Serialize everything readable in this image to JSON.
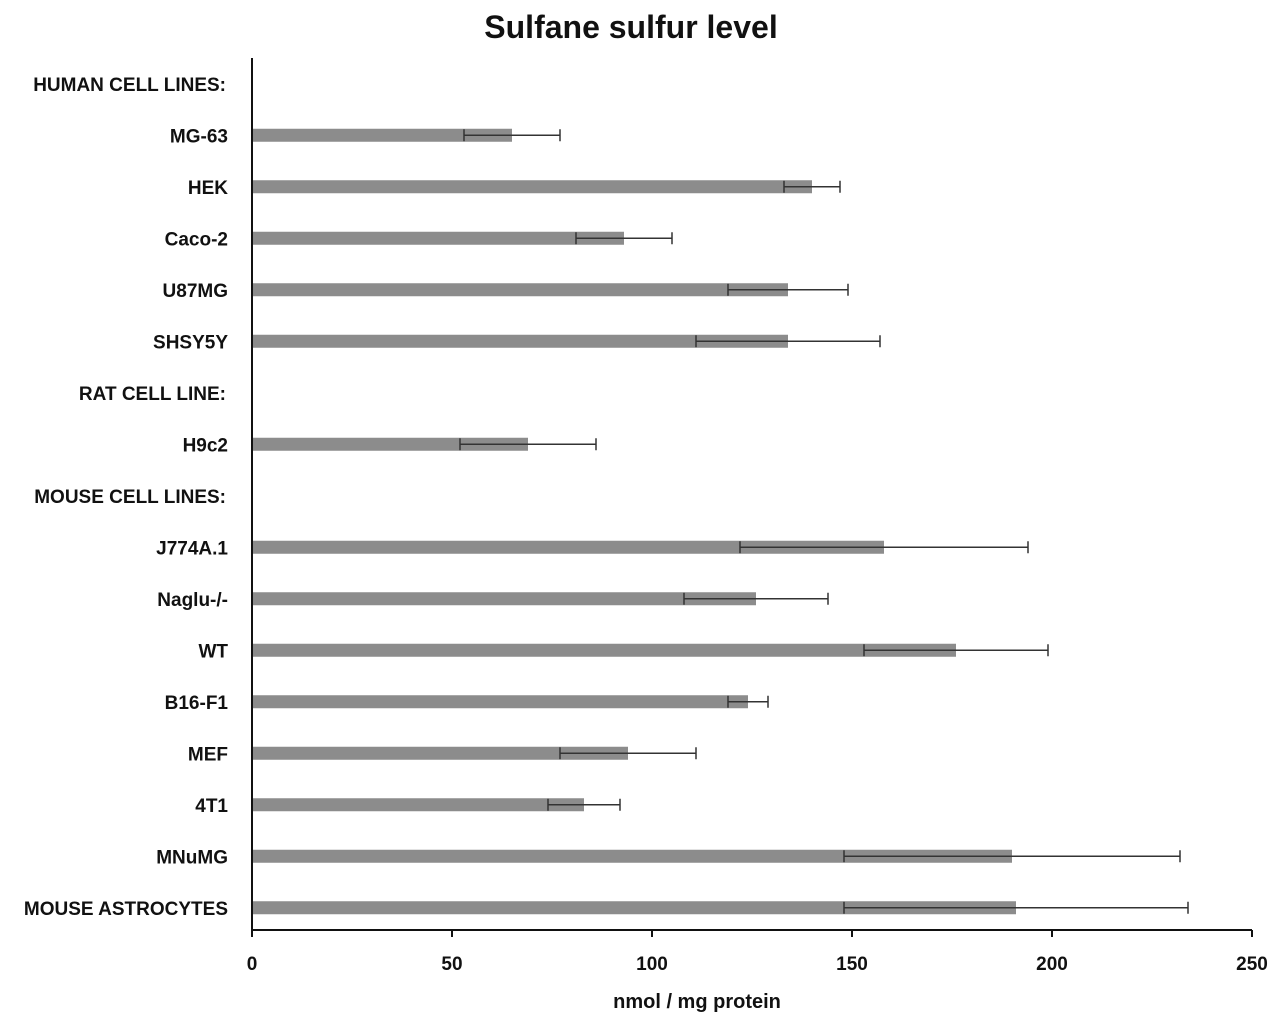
{
  "chart_data": {
    "type": "bar",
    "orientation": "horizontal",
    "title": "Sulfane sulfur level",
    "xlabel": "nmol / mg protein",
    "ylabel": "",
    "xlim": [
      0,
      250
    ],
    "x_ticks": [
      "0",
      "50",
      "100",
      "150",
      "200",
      "250"
    ],
    "grid": false,
    "bar_color": "#8c8c8c",
    "categories": [
      "HUMAN CELL LINES:",
      "MG-63",
      "HEK",
      "Caco-2",
      "U87MG",
      "SHSY5Y",
      "RAT CELL LINE:",
      "H9c2",
      "MOUSE CELL LINES:",
      "J774A.1",
      "Naglu-/-",
      "WT",
      "B16-F1",
      "MEF",
      "4T1",
      "MNuMG",
      "MOUSE ASTROCYTES"
    ],
    "values": [
      null,
      65,
      140,
      93,
      134,
      134,
      null,
      69,
      null,
      158,
      126,
      176,
      124,
      94,
      83,
      190,
      191
    ],
    "errors": [
      null,
      12,
      7,
      12,
      15,
      23,
      null,
      17,
      null,
      36,
      18,
      23,
      5,
      17,
      9,
      42,
      43
    ]
  }
}
